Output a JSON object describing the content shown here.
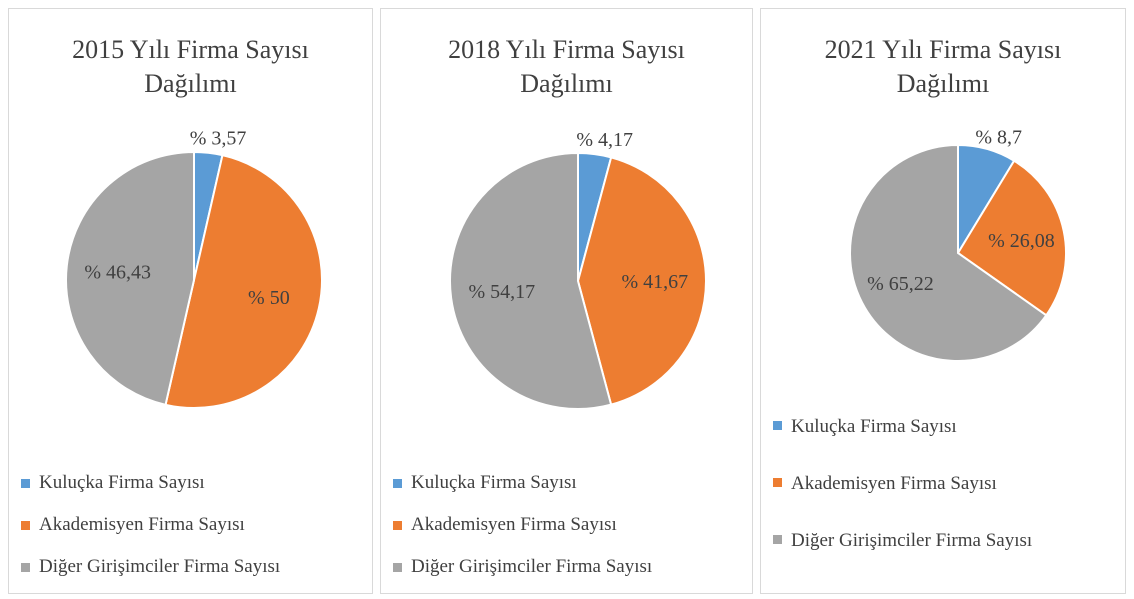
{
  "chart_data": [
    {
      "type": "pie",
      "title": "2015 Yılı Firma Sayısı Dağılımı",
      "categories": [
        "Kuluçka Firma Sayısı",
        "Akademisyen Firma Sayısı",
        "Diğer Girişimciler Firma Sayısı"
      ],
      "values": [
        3.57,
        50,
        46.43
      ],
      "value_labels": [
        "% 3,57",
        "% 50",
        "% 46,43"
      ],
      "colors": [
        "#5b9bd5",
        "#ed7d31",
        "#a5a5a5"
      ]
    },
    {
      "type": "pie",
      "title": "2018 Yılı Firma Sayısı Dağılımı",
      "categories": [
        "Kuluçka Firma Sayısı",
        "Akademisyen Firma Sayısı",
        "Diğer Girişimciler Firma Sayısı"
      ],
      "values": [
        4.17,
        41.67,
        54.17
      ],
      "value_labels": [
        "% 4,17",
        "% 41,67",
        "% 54,17"
      ],
      "colors": [
        "#5b9bd5",
        "#ed7d31",
        "#a5a5a5"
      ]
    },
    {
      "type": "pie",
      "title": "2021 Yılı Firma Sayısı Dağılımı",
      "categories": [
        "Kuluçka Firma Sayısı",
        "Akademisyen Firma Sayısı",
        "Diğer Girişimciler Firma Sayısı"
      ],
      "values": [
        8.7,
        26.08,
        65.22
      ],
      "value_labels": [
        "% 8,7",
        "% 26,08",
        "% 65,22"
      ],
      "colors": [
        "#5b9bd5",
        "#ed7d31",
        "#a5a5a5"
      ]
    }
  ]
}
